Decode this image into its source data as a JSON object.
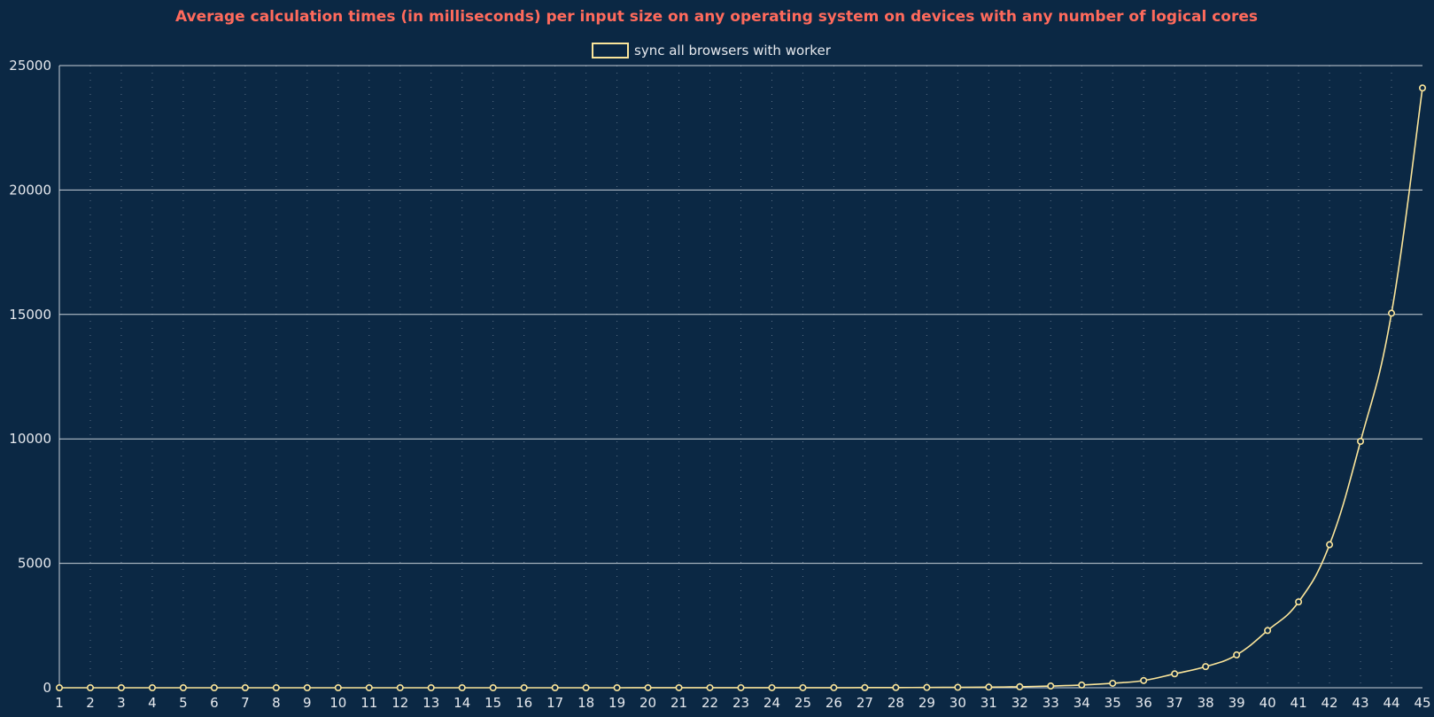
{
  "chart_data": {
    "type": "line",
    "title": "Average calculation times (in milliseconds) per input size on any operating system on devices with any number of logical cores",
    "xlabel": "",
    "ylabel": "",
    "categories": [
      "1",
      "2",
      "3",
      "4",
      "5",
      "6",
      "7",
      "8",
      "9",
      "10",
      "11",
      "12",
      "13",
      "14",
      "15",
      "16",
      "17",
      "18",
      "19",
      "20",
      "21",
      "22",
      "23",
      "24",
      "25",
      "26",
      "27",
      "28",
      "29",
      "30",
      "31",
      "32",
      "33",
      "34",
      "35",
      "36",
      "37",
      "38",
      "39",
      "40",
      "41",
      "42",
      "43",
      "44",
      "45"
    ],
    "y_ticks": [
      0,
      5000,
      10000,
      15000,
      20000,
      25000
    ],
    "ylim": [
      0,
      25000
    ],
    "grid": {
      "horizontal": true,
      "vertical": "dotted"
    },
    "legend_position": "top-center",
    "series": [
      {
        "name": "sync all browsers with worker",
        "values": [
          0,
          0,
          0,
          0,
          0,
          0,
          0,
          0,
          0,
          0,
          0,
          0,
          0,
          0,
          0,
          0,
          0,
          0,
          0,
          1,
          1,
          2,
          2,
          2,
          2,
          3,
          5,
          7,
          12,
          18,
          25,
          40,
          70,
          110,
          180,
          290,
          560,
          850,
          1320,
          2300,
          3450,
          5750,
          9900,
          15050,
          24100
        ]
      }
    ]
  },
  "colors": {
    "background": "#0b2844",
    "title": "#ff6a5c",
    "series": "#fbe59a",
    "grid": "#c8d0d8",
    "text": "#e6e9ee"
  }
}
